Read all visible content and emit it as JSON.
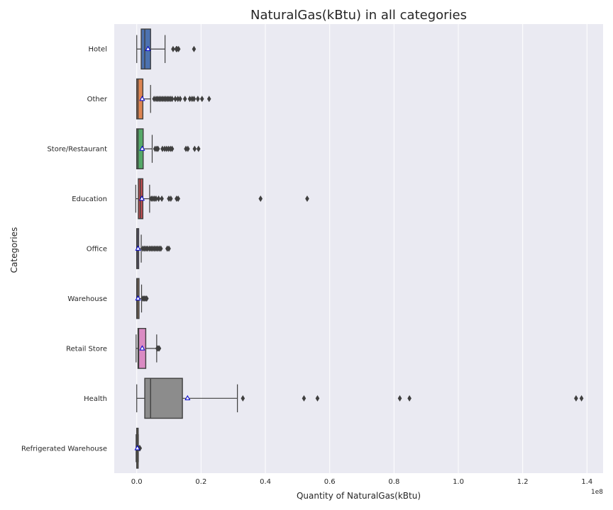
{
  "chart_data": {
    "type": "box",
    "title": "NaturalGas(kBtu) in all categories",
    "xlabel": "Quantity of NaturalGas(kBtu)",
    "ylabel": "Categories",
    "x_offset_label": "1e8",
    "xlim": [
      -0.07,
      1.45
    ],
    "x_ticks": [
      0.0,
      0.2,
      0.4,
      0.6,
      0.8,
      1.0,
      1.2,
      1.4
    ],
    "x_tick_labels": [
      "0.0",
      "0.2",
      "0.4",
      "0.6",
      "0.8",
      "1.0",
      "1.2",
      "1.4"
    ],
    "x_unit_multiplier": 100000000,
    "grid": true,
    "background": "#eaeaf2",
    "mean_marker_color": "#0000cc",
    "categories": [
      {
        "name": "Hotel",
        "color": "#4c72b0",
        "whisker_low": 0.0,
        "q1": 0.014,
        "median": 0.025,
        "q3": 0.043,
        "whisker_high": 0.088,
        "mean": 0.035,
        "outliers": [
          0.113,
          0.123,
          0.125,
          0.13,
          0.178
        ]
      },
      {
        "name": "Other",
        "color": "#dd8452",
        "whisker_low": 0.0,
        "q1": 0.0,
        "median": 0.004,
        "q3": 0.019,
        "whisker_high": 0.043,
        "mean": 0.017,
        "outliers": [
          0.054,
          0.06,
          0.065,
          0.07,
          0.075,
          0.08,
          0.085,
          0.09,
          0.095,
          0.1,
          0.105,
          0.11,
          0.12,
          0.128,
          0.135,
          0.15,
          0.165,
          0.172,
          0.178,
          0.19,
          0.203,
          0.225
        ]
      },
      {
        "name": "Store/Restaurant",
        "color": "#55a868",
        "whisker_low": 0.0,
        "q1": 0.0,
        "median": 0.004,
        "q3": 0.02,
        "whisker_high": 0.048,
        "mean": 0.017,
        "outliers": [
          0.057,
          0.062,
          0.066,
          0.08,
          0.087,
          0.093,
          0.099,
          0.105,
          0.11,
          0.153,
          0.159,
          0.18,
          0.192
        ]
      },
      {
        "name": "Education",
        "color": "#c44e52",
        "whisker_low": -0.003,
        "q1": 0.005,
        "median": 0.011,
        "q3": 0.019,
        "whisker_high": 0.04,
        "mean": 0.016,
        "outliers": [
          0.045,
          0.05,
          0.055,
          0.06,
          0.068,
          0.078,
          0.1,
          0.106,
          0.124,
          0.129,
          0.385,
          0.53
        ]
      },
      {
        "name": "Office",
        "color": "#8172b3",
        "whisker_low": 0.0,
        "q1": 0.0,
        "median": 0.002,
        "q3": 0.006,
        "whisker_high": 0.014,
        "mean": 0.004,
        "outliers": [
          0.019,
          0.024,
          0.029,
          0.034,
          0.04,
          0.045,
          0.05,
          0.055,
          0.06,
          0.065,
          0.07,
          0.075,
          0.095,
          0.1
        ]
      },
      {
        "name": "Warehouse",
        "color": "#937860",
        "whisker_low": 0.0,
        "q1": 0.0,
        "median": 0.002,
        "q3": 0.007,
        "whisker_high": 0.015,
        "mean": 0.004,
        "outliers": [
          0.019,
          0.023,
          0.027,
          0.031
        ]
      },
      {
        "name": "Retail Store",
        "color": "#da8bc3",
        "whisker_low": -0.002,
        "q1": 0.004,
        "median": 0.006,
        "q3": 0.028,
        "whisker_high": 0.062,
        "mean": 0.017,
        "outliers": [
          0.064,
          0.067,
          0.07
        ]
      },
      {
        "name": "Health",
        "color": "#8c8c8c",
        "whisker_low": 0.0,
        "q1": 0.025,
        "median": 0.043,
        "q3": 0.142,
        "whisker_high": 0.313,
        "mean": 0.158,
        "outliers": [
          0.33,
          0.52,
          0.562,
          0.818,
          0.848,
          1.366,
          1.383
        ]
      },
      {
        "name": "Refrigerated Warehouse",
        "color": "#ccb974",
        "whisker_low": -0.002,
        "q1": 0.0,
        "median": 0.001,
        "q3": 0.004,
        "whisker_high": 0.005,
        "mean": 0.002,
        "outliers": [
          0.008,
          0.01
        ]
      }
    ]
  }
}
